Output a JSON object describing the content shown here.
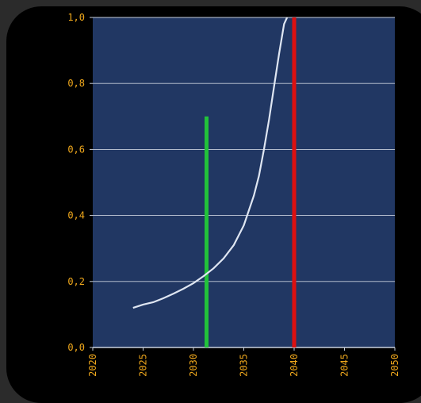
{
  "chart_data": {
    "type": "line",
    "title": "",
    "xlabel": "",
    "ylabel": "",
    "xlim": [
      2020,
      2050
    ],
    "ylim": [
      0.0,
      1.0
    ],
    "x_ticks": [
      2020,
      2025,
      2030,
      2035,
      2040,
      2045,
      2050
    ],
    "x_tick_labels": [
      "2020",
      "2025",
      "2030",
      "2035",
      "2040",
      "2045",
      "2050"
    ],
    "y_ticks": [
      0.0,
      0.2,
      0.4,
      0.6,
      0.8,
      1.0
    ],
    "y_tick_labels": [
      "0,0",
      "0,2",
      "0,4",
      "0,6",
      "0,8",
      "1,0"
    ],
    "grid": true,
    "colors": {
      "plot_bg": "#213763",
      "grid": "#c8cfdc",
      "curve": "#dfe6f2",
      "tick_label": "#f0a81c",
      "green_bar": "#22c23a",
      "red_bar": "#dd1010"
    },
    "series": [
      {
        "x": [
          2024.0,
          2025.0,
          2026.0,
          2027.0,
          2028.0,
          2029.0,
          2030.0,
          2031.0,
          2032.0,
          2033.0,
          2034.0,
          2035.0,
          2036.0,
          2036.5,
          2037.0,
          2037.5,
          2038.0,
          2038.5,
          2039.0,
          2039.3
        ],
        "y": [
          0.12,
          0.13,
          0.137,
          0.149,
          0.163,
          0.178,
          0.195,
          0.216,
          0.24,
          0.27,
          0.31,
          0.37,
          0.46,
          0.52,
          0.6,
          0.69,
          0.79,
          0.89,
          0.98,
          1.0
        ]
      }
    ],
    "vertical_bars": [
      {
        "x": 2031.3,
        "y_top": 0.7,
        "color": "green"
      },
      {
        "x": 2040.0,
        "y_top": 1.0,
        "color": "red"
      }
    ]
  }
}
